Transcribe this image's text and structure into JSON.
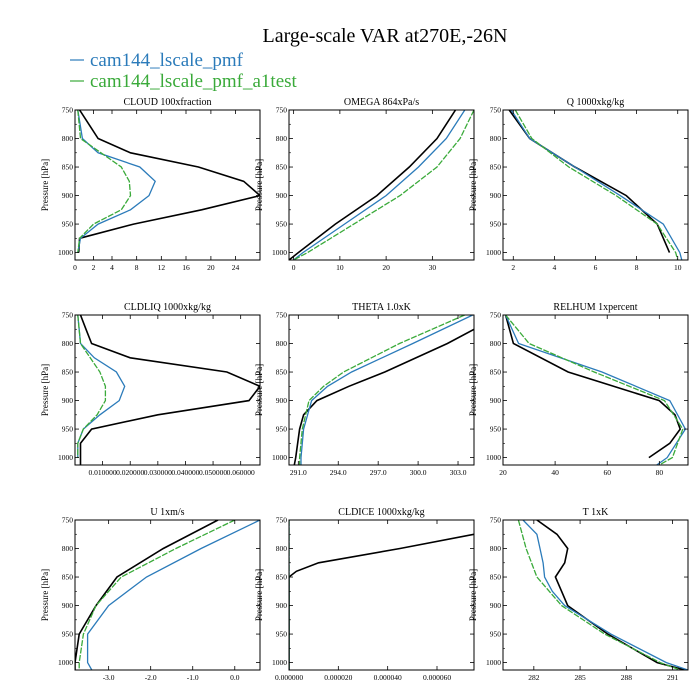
{
  "figure": {
    "title": "Large-scale VAR at270E,-26N",
    "legend": [
      {
        "label": "cam144_lscale_pmf",
        "color": "#2b7bba"
      },
      {
        "label": "cam144_lscale_pmf_a1test",
        "color": "#3aaa3a"
      }
    ]
  },
  "chart_data": [
    {
      "type": "line",
      "title": "CLOUD  100xfraction",
      "ylabel": "Pressure [hPa]",
      "xlim": [
        0,
        27
      ],
      "ylim": [
        750,
        1013
      ],
      "xticks": [
        0,
        2,
        4,
        8,
        12,
        16,
        20,
        24
      ],
      "xtick_labels": [
        "0",
        "2",
        "4",
        "8",
        "12",
        "16",
        "20",
        "24"
      ],
      "yticks": [
        750,
        800,
        850,
        900,
        950,
        1000
      ],
      "ytick_labels": [
        "750",
        "800",
        "850",
        "900",
        "950",
        "1000"
      ],
      "y_scale": "piecewise",
      "series": [
        {
          "color": "#000000",
          "y": [
            750,
            775,
            800,
            825,
            850,
            875,
            900,
            925,
            950,
            975,
            1000
          ],
          "x": [
            0.5,
            1.5,
            2.5,
            7.0,
            18.0,
            25.0,
            27.0,
            18.5,
            7.5,
            0.5,
            0.4
          ]
        },
        {
          "name": "cam144_lscale_pmf",
          "color": "#2b7bba",
          "y": [
            750,
            800,
            825,
            850,
            875,
            900,
            925,
            950,
            975,
            1000
          ],
          "x": [
            0.3,
            0.8,
            2.5,
            8.5,
            11.0,
            10.0,
            7.0,
            2.5,
            0.6,
            0.3
          ]
        },
        {
          "name": "cam144_lscale_pmf_a1test",
          "color": "#3aaa3a",
          "y": [
            750,
            800,
            850,
            875,
            900,
            925,
            950,
            975,
            1000
          ],
          "x": [
            0.3,
            0.6,
            5.5,
            6.8,
            7.0,
            5.5,
            2.0,
            0.5,
            0.3
          ]
        }
      ]
    },
    {
      "type": "line",
      "title": "OMEGA  864xPa/s",
      "ylabel": "Pressure [hPa]",
      "xlim": [
        -1,
        39
      ],
      "ylim": [
        750,
        1013
      ],
      "xticks": [
        0,
        10,
        20,
        30
      ],
      "xtick_labels": [
        "0",
        "10",
        "20",
        "30"
      ],
      "yticks": [
        750,
        800,
        850,
        900,
        950,
        1000
      ],
      "ytick_labels": [
        "750",
        "800",
        "850",
        "900",
        "950",
        "1000"
      ],
      "series": [
        {
          "color": "#000000",
          "y": [
            750,
            800,
            850,
            900,
            950,
            1000,
            1013
          ],
          "x": [
            35,
            31,
            25,
            18,
            9,
            1,
            -1
          ]
        },
        {
          "name": "cam144_lscale_pmf",
          "color": "#2b7bba",
          "y": [
            750,
            800,
            850,
            900,
            950,
            1000,
            1013
          ],
          "x": [
            37,
            33,
            27,
            20,
            11,
            2,
            0
          ]
        },
        {
          "name": "cam144_lscale_pmf_a1test",
          "color": "#3aaa3a",
          "y": [
            750,
            800,
            850,
            900,
            950,
            1000,
            1013
          ],
          "x": [
            39,
            36,
            31,
            23,
            13,
            3,
            0
          ]
        }
      ]
    },
    {
      "type": "line",
      "title": "Q  1000xkg/kg",
      "ylabel": "Pressure [hPa]",
      "xlim": [
        1.5,
        10.5
      ],
      "ylim": [
        750,
        1013
      ],
      "xticks": [
        2,
        4,
        6,
        8,
        10
      ],
      "xtick_labels": [
        "2",
        "4",
        "6",
        "8",
        "10"
      ],
      "yticks": [
        750,
        800,
        850,
        900,
        950,
        1000
      ],
      "ytick_labels": [
        "750",
        "800",
        "850",
        "900",
        "950",
        "1000"
      ],
      "series": [
        {
          "color": "#000000",
          "y": [
            750,
            800,
            850,
            900,
            950,
            1000
          ],
          "x": [
            1.8,
            2.8,
            5.0,
            7.5,
            9.0,
            9.6
          ]
        },
        {
          "name": "cam144_lscale_pmf",
          "color": "#2b7bba",
          "y": [
            750,
            800,
            850,
            900,
            950,
            1000,
            1013
          ],
          "x": [
            1.9,
            2.8,
            5.0,
            7.2,
            9.3,
            10.1,
            10.2
          ]
        },
        {
          "name": "cam144_lscale_pmf_a1test",
          "color": "#3aaa3a",
          "y": [
            750,
            800,
            850,
            900,
            950,
            1000,
            1013
          ],
          "x": [
            2.1,
            2.9,
            4.7,
            7.0,
            9.0,
            9.9,
            10.0
          ]
        }
      ]
    },
    {
      "type": "line",
      "title": "CLDLIQ  1000xkg/kg",
      "ylabel": "Pressure [hPa]",
      "xlim": [
        0,
        0.067
      ],
      "ylim": [
        750,
        1013
      ],
      "xticks": [
        0.01,
        0.02,
        0.03,
        0.04,
        0.05,
        0.06
      ],
      "xtick_labels": [
        "0.010000",
        "0.020000",
        "0.030000",
        "0.040000",
        "0.050000",
        "0.060000"
      ],
      "yticks": [
        750,
        800,
        850,
        900,
        950,
        1000
      ],
      "ytick_labels": [
        "750",
        "800",
        "850",
        "900",
        "950",
        "1000"
      ],
      "series": [
        {
          "color": "#000000",
          "y": [
            750,
            775,
            800,
            825,
            850,
            875,
            900,
            925,
            950,
            975,
            1000,
            1013
          ],
          "x": [
            0.002,
            0.004,
            0.006,
            0.02,
            0.055,
            0.067,
            0.063,
            0.03,
            0.006,
            0.002,
            0.002,
            0.002
          ]
        },
        {
          "name": "cam144_lscale_pmf",
          "color": "#2b7bba",
          "y": [
            750,
            800,
            825,
            850,
            875,
            900,
            925,
            950,
            975,
            1000
          ],
          "x": [
            0.001,
            0.002,
            0.007,
            0.015,
            0.018,
            0.016,
            0.009,
            0.003,
            0.001,
            0.001
          ]
        },
        {
          "name": "cam144_lscale_pmf_a1test",
          "color": "#3aaa3a",
          "y": [
            750,
            800,
            850,
            875,
            900,
            925,
            950,
            975,
            1000
          ],
          "x": [
            0.001,
            0.002,
            0.009,
            0.011,
            0.011,
            0.008,
            0.003,
            0.001,
            0.001
          ]
        }
      ]
    },
    {
      "type": "line",
      "title": "THETA  1.0xK",
      "ylabel": "Pressure [hPa]",
      "xlim": [
        290.3,
        304.2
      ],
      "ylim": [
        750,
        1013
      ],
      "xticks": [
        291,
        294,
        297,
        300,
        303
      ],
      "xtick_labels": [
        "291.0",
        "294.0",
        "297.0",
        "300.0",
        "303.0"
      ],
      "yticks": [
        750,
        800,
        850,
        900,
        950,
        1000
      ],
      "ytick_labels": [
        "750",
        "800",
        "850",
        "900",
        "950",
        "1000"
      ],
      "series": [
        {
          "color": "#000000",
          "y": [
            775,
            800,
            850,
            875,
            900,
            925,
            950,
            1000,
            1013
          ],
          "x": [
            304.2,
            302.2,
            297.5,
            294.8,
            292.4,
            291.4,
            291.1,
            290.8,
            290.7
          ]
        },
        {
          "name": "cam144_lscale_pmf",
          "color": "#2b7bba",
          "y": [
            750,
            800,
            850,
            875,
            900,
            950,
            1000,
            1013
          ],
          "x": [
            304.1,
            299.6,
            295.0,
            293.2,
            292.0,
            291.4,
            291.2,
            291.2
          ]
        },
        {
          "name": "cam144_lscale_pmf_a1test",
          "color": "#3aaa3a",
          "y": [
            750,
            800,
            850,
            875,
            900,
            950,
            1000,
            1013
          ],
          "x": [
            303.5,
            298.6,
            294.4,
            292.9,
            291.8,
            291.3,
            291.1,
            291.1
          ]
        }
      ]
    },
    {
      "type": "line",
      "title": "RELHUM  1xpercent",
      "ylabel": "Pressure [hPa]",
      "xlim": [
        20,
        91
      ],
      "ylim": [
        750,
        1013
      ],
      "xticks": [
        20,
        40,
        60,
        80
      ],
      "xtick_labels": [
        "20",
        "40",
        "60",
        "80"
      ],
      "yticks": [
        750,
        800,
        850,
        900,
        950,
        1000
      ],
      "ytick_labels": [
        "750",
        "800",
        "850",
        "900",
        "950",
        "1000"
      ],
      "series": [
        {
          "color": "#000000",
          "y": [
            750,
            800,
            850,
            900,
            925,
            950,
            975,
            1000
          ],
          "x": [
            21,
            24,
            45,
            80,
            86,
            88,
            84,
            76
          ]
        },
        {
          "name": "cam144_lscale_pmf",
          "color": "#2b7bba",
          "y": [
            750,
            800,
            850,
            900,
            950,
            1000,
            1013
          ],
          "x": [
            21,
            26,
            58,
            84,
            90,
            83,
            79
          ]
        },
        {
          "name": "cam144_lscale_pmf_a1test",
          "color": "#3aaa3a",
          "y": [
            750,
            800,
            850,
            900,
            950,
            1000,
            1013
          ],
          "x": [
            21,
            30,
            55,
            82,
            89,
            85,
            80
          ]
        }
      ]
    },
    {
      "type": "line",
      "title": "U  1xm/s",
      "ylabel": "Pressure [hPa]",
      "xlim": [
        -3.8,
        0.6
      ],
      "ylim": [
        750,
        1013
      ],
      "xticks": [
        -3,
        -2,
        -1,
        0
      ],
      "xtick_labels": [
        "-3.0",
        "-2.0",
        "-1.0",
        "0.0"
      ],
      "yticks": [
        750,
        800,
        850,
        900,
        950,
        1000
      ],
      "ytick_labels": [
        "750",
        "800",
        "850",
        "900",
        "950",
        "1000"
      ],
      "series": [
        {
          "color": "#000000",
          "y": [
            750,
            800,
            850,
            900,
            950,
            1000,
            1013
          ],
          "x": [
            -0.4,
            -1.7,
            -2.8,
            -3.3,
            -3.7,
            -3.8,
            -3.8
          ]
        },
        {
          "name": "cam144_lscale_pmf",
          "color": "#2b7bba",
          "y": [
            750,
            800,
            850,
            900,
            950,
            1000,
            1013
          ],
          "x": [
            0.6,
            -0.8,
            -2.1,
            -3.0,
            -3.5,
            -3.5,
            -3.4
          ]
        },
        {
          "name": "cam144_lscale_pmf_a1test",
          "color": "#3aaa3a",
          "y": [
            750,
            800,
            850,
            900,
            950,
            1000,
            1013
          ],
          "x": [
            0.0,
            -1.4,
            -2.7,
            -3.3,
            -3.6,
            -3.7,
            -3.7
          ]
        }
      ]
    },
    {
      "type": "line",
      "title": "CLDICE  1000xkg/kg",
      "ylabel": "Pressure [hPa]",
      "xlim": [
        0,
        7.5e-05
      ],
      "ylim": [
        750,
        1013
      ],
      "xticks": [
        0,
        2e-05,
        4e-05,
        6e-05
      ],
      "xtick_labels": [
        "0.000000",
        "0.000020",
        "0.000040",
        "0.000060"
      ],
      "yticks": [
        750,
        800,
        850,
        900,
        950,
        1000
      ],
      "ytick_labels": [
        "750",
        "800",
        "850",
        "900",
        "950",
        "1000"
      ],
      "series": [
        {
          "color": "#000000",
          "y": [
            775,
            800,
            825,
            840,
            850,
            900,
            950,
            1000,
            1013
          ],
          "x": [
            7.5e-05,
            4.5e-05,
            1.2e-05,
            3e-06,
            0,
            0,
            0,
            0,
            0
          ]
        },
        {
          "name": "cam144_lscale_pmf",
          "color": "#2b7bba",
          "y": [
            750,
            1013
          ],
          "x": [
            0,
            0
          ]
        },
        {
          "name": "cam144_lscale_pmf_a1test",
          "color": "#3aaa3a",
          "y": [
            750,
            1013
          ],
          "x": [
            0,
            0
          ]
        }
      ]
    },
    {
      "type": "line",
      "title": "T  1xK",
      "ylabel": "Pressure [hPa]",
      "xlim": [
        280,
        292
      ],
      "ylim": [
        750,
        1013
      ],
      "xticks": [
        282,
        285,
        288,
        291
      ],
      "xtick_labels": [
        "282",
        "285",
        "288",
        "291"
      ],
      "yticks": [
        750,
        800,
        850,
        900,
        950,
        1000
      ],
      "ytick_labels": [
        "750",
        "800",
        "850",
        "900",
        "950",
        "1000"
      ],
      "series": [
        {
          "color": "#000000",
          "y": [
            750,
            775,
            800,
            825,
            850,
            875,
            900,
            950,
            1000,
            1013
          ],
          "x": [
            282.2,
            283.5,
            284.2,
            284.0,
            283.4,
            283.8,
            284.2,
            286.8,
            290.0,
            291.8
          ]
        },
        {
          "name": "cam144_lscale_pmf",
          "color": "#2b7bba",
          "y": [
            750,
            775,
            800,
            825,
            850,
            875,
            900,
            950,
            1000,
            1013
          ],
          "x": [
            281.3,
            282.2,
            282.4,
            282.6,
            282.7,
            283.2,
            284.0,
            287.0,
            290.6,
            292.0
          ]
        },
        {
          "name": "cam144_lscale_pmf_a1test",
          "color": "#3aaa3a",
          "y": [
            750,
            800,
            850,
            900,
            950,
            1000,
            1013
          ],
          "x": [
            281.0,
            281.5,
            282.2,
            283.8,
            286.6,
            290.2,
            291.5
          ]
        }
      ]
    }
  ]
}
